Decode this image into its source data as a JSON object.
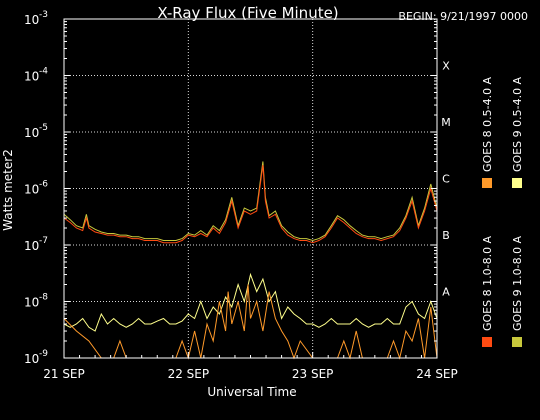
{
  "chart_data": {
    "type": "line",
    "title": "X-Ray Flux (Five Minute)",
    "begin_label": "BEGIN: 9/21/1997 0000",
    "xlabel": "Universal Time",
    "ylabel": "Watts meter2",
    "y_scale": "log",
    "ylim": [
      1e-09,
      0.001
    ],
    "xlim": [
      0,
      3
    ],
    "x_unit": "days from 21 SEP 1997 00:00 UT",
    "y_ticks": [
      {
        "base": "10",
        "exp": "-9",
        "value": 1e-09
      },
      {
        "base": "10",
        "exp": "-8",
        "value": 1e-08
      },
      {
        "base": "10",
        "exp": "-7",
        "value": 1e-07
      },
      {
        "base": "10",
        "exp": "-6",
        "value": 1e-06
      },
      {
        "base": "10",
        "exp": "-5",
        "value": 1e-05
      },
      {
        "base": "10",
        "exp": "-4",
        "value": 0.0001
      },
      {
        "base": "10",
        "exp": "-3",
        "value": 0.001
      }
    ],
    "x_ticks": [
      {
        "label": "21 SEP",
        "value": 0
      },
      {
        "label": "22 SEP",
        "value": 1
      },
      {
        "label": "23 SEP",
        "value": 2
      },
      {
        "label": "24 SEP",
        "value": 3
      }
    ],
    "flare_classes": [
      {
        "label": "A",
        "value": 1e-08
      },
      {
        "label": "B",
        "value": 1e-07
      },
      {
        "label": "C",
        "value": 1e-06
      },
      {
        "label": "M",
        "value": 1e-05
      },
      {
        "label": "X",
        "value": 0.0001
      }
    ],
    "grid": true,
    "legend_placement": "right",
    "series": [
      {
        "name": "GOES 8 1.0-8.0 A",
        "color": "#ff4b12",
        "x": [
          0,
          0.05,
          0.1,
          0.15,
          0.18,
          0.2,
          0.25,
          0.3,
          0.35,
          0.4,
          0.45,
          0.5,
          0.55,
          0.6,
          0.65,
          0.7,
          0.75,
          0.8,
          0.85,
          0.9,
          0.95,
          1.0,
          1.05,
          1.1,
          1.15,
          1.2,
          1.25,
          1.3,
          1.35,
          1.4,
          1.45,
          1.5,
          1.55,
          1.6,
          1.62,
          1.65,
          1.7,
          1.75,
          1.8,
          1.85,
          1.9,
          1.95,
          2.0,
          2.05,
          2.1,
          2.15,
          2.2,
          2.25,
          2.3,
          2.35,
          2.4,
          2.45,
          2.5,
          2.55,
          2.6,
          2.65,
          2.7,
          2.75,
          2.8,
          2.85,
          2.9,
          2.95,
          3.0
        ],
        "values": [
          3e-07,
          2.5e-07,
          2e-07,
          1.8e-07,
          3e-07,
          2e-07,
          1.7e-07,
          1.6e-07,
          1.5e-07,
          1.5e-07,
          1.4e-07,
          1.4e-07,
          1.3e-07,
          1.3e-07,
          1.2e-07,
          1.2e-07,
          1.2e-07,
          1.1e-07,
          1.1e-07,
          1.1e-07,
          1.2e-07,
          1.5e-07,
          1.4e-07,
          1.6e-07,
          1.4e-07,
          2e-07,
          1.6e-07,
          2.5e-07,
          6e-07,
          2e-07,
          4e-07,
          3.5e-07,
          4e-07,
          2.6e-06,
          6e-07,
          3e-07,
          3.5e-07,
          2e-07,
          1.5e-07,
          1.3e-07,
          1.2e-07,
          1.2e-07,
          1.1e-07,
          1.2e-07,
          1.4e-07,
          2e-07,
          3e-07,
          2.5e-07,
          2e-07,
          1.6e-07,
          1.4e-07,
          1.3e-07,
          1.3e-07,
          1.2e-07,
          1.3e-07,
          1.4e-07,
          1.8e-07,
          3e-07,
          6e-07,
          2e-07,
          4e-07,
          1e-06,
          4e-07
        ]
      },
      {
        "name": "GOES 8 0.5-4.0 A",
        "color": "#ff9a2a",
        "x": [
          0,
          0.1,
          0.2,
          0.3,
          0.4,
          0.45,
          0.5,
          0.55,
          0.6,
          0.7,
          0.8,
          0.9,
          0.95,
          1.0,
          1.05,
          1.1,
          1.15,
          1.2,
          1.25,
          1.3,
          1.32,
          1.35,
          1.4,
          1.45,
          1.48,
          1.5,
          1.55,
          1.6,
          1.65,
          1.7,
          1.75,
          1.8,
          1.85,
          1.9,
          2.0,
          2.1,
          2.2,
          2.25,
          2.3,
          2.35,
          2.4,
          2.5,
          2.6,
          2.65,
          2.7,
          2.75,
          2.8,
          2.85,
          2.9,
          2.95,
          3.0
        ],
        "values": [
          5e-09,
          3e-09,
          2e-09,
          1e-09,
          1e-09,
          2e-09,
          1e-09,
          1e-09,
          1e-09,
          1e-09,
          1e-09,
          1e-09,
          2e-09,
          1e-09,
          3e-09,
          1e-09,
          4e-09,
          2e-09,
          1e-08,
          3e-09,
          1.5e-08,
          4e-09,
          1e-08,
          3e-09,
          2e-08,
          5e-09,
          1e-08,
          3e-09,
          1.5e-08,
          5e-09,
          3e-09,
          2e-09,
          1e-09,
          2e-09,
          1e-09,
          1e-09,
          1e-09,
          2e-09,
          1e-09,
          3e-09,
          1e-09,
          1e-09,
          1e-09,
          2e-09,
          1e-09,
          3e-09,
          2e-09,
          5e-09,
          1e-09,
          8e-09,
          1e-09
        ]
      },
      {
        "name": "GOES 9 0.5-4.0 A",
        "color": "#ffff8c",
        "x": [
          0,
          0.05,
          0.1,
          0.15,
          0.2,
          0.25,
          0.3,
          0.35,
          0.4,
          0.45,
          0.5,
          0.55,
          0.6,
          0.65,
          0.7,
          0.75,
          0.8,
          0.85,
          0.9,
          0.95,
          1.0,
          1.05,
          1.1,
          1.15,
          1.2,
          1.25,
          1.3,
          1.35,
          1.4,
          1.45,
          1.5,
          1.55,
          1.6,
          1.65,
          1.7,
          1.75,
          1.8,
          1.85,
          1.9,
          1.95,
          2.0,
          2.05,
          2.1,
          2.15,
          2.2,
          2.25,
          2.3,
          2.35,
          2.4,
          2.45,
          2.5,
          2.55,
          2.6,
          2.65,
          2.7,
          2.75,
          2.8,
          2.85,
          2.9,
          2.95,
          3.0
        ],
        "values": [
          4e-09,
          3.5e-09,
          4e-09,
          5e-09,
          3.5e-09,
          3e-09,
          6e-09,
          4e-09,
          5e-09,
          4e-09,
          3.5e-09,
          4e-09,
          5e-09,
          4e-09,
          4e-09,
          4.5e-09,
          5e-09,
          4e-09,
          4e-09,
          4.5e-09,
          6e-09,
          5e-09,
          1e-08,
          5e-09,
          8e-09,
          6e-09,
          1.2e-08,
          8e-09,
          2e-08,
          1e-08,
          3e-08,
          1.5e-08,
          2.5e-08,
          1e-08,
          1.5e-08,
          5e-09,
          8e-09,
          6e-09,
          5e-09,
          4e-09,
          4e-09,
          3.5e-09,
          4e-09,
          5e-09,
          4e-09,
          4e-09,
          4e-09,
          5e-09,
          4e-09,
          3.5e-09,
          4e-09,
          4e-09,
          5e-09,
          4e-09,
          4e-09,
          8e-09,
          1e-08,
          6e-09,
          5e-09,
          1e-08,
          5e-09
        ]
      },
      {
        "name": "GOES 9 1.0-8.0 A",
        "color": "#c8c83c",
        "x": [
          0,
          0.05,
          0.1,
          0.15,
          0.18,
          0.2,
          0.25,
          0.3,
          0.35,
          0.4,
          0.45,
          0.5,
          0.55,
          0.6,
          0.65,
          0.7,
          0.75,
          0.8,
          0.85,
          0.9,
          0.95,
          1.0,
          1.05,
          1.1,
          1.15,
          1.2,
          1.25,
          1.3,
          1.35,
          1.4,
          1.45,
          1.5,
          1.55,
          1.6,
          1.62,
          1.65,
          1.7,
          1.75,
          1.8,
          1.85,
          1.9,
          1.95,
          2.0,
          2.05,
          2.1,
          2.15,
          2.2,
          2.25,
          2.3,
          2.35,
          2.4,
          2.45,
          2.5,
          2.55,
          2.6,
          2.65,
          2.7,
          2.75,
          2.8,
          2.85,
          2.9,
          2.95,
          3.0
        ],
        "values": [
          3.5e-07,
          2.8e-07,
          2.2e-07,
          2e-07,
          3.5e-07,
          2.2e-07,
          1.9e-07,
          1.7e-07,
          1.6e-07,
          1.6e-07,
          1.5e-07,
          1.5e-07,
          1.4e-07,
          1.4e-07,
          1.3e-07,
          1.3e-07,
          1.3e-07,
          1.2e-07,
          1.2e-07,
          1.2e-07,
          1.3e-07,
          1.6e-07,
          1.5e-07,
          1.8e-07,
          1.5e-07,
          2.2e-07,
          1.8e-07,
          2.8e-07,
          7e-07,
          2.2e-07,
          4.5e-07,
          4e-07,
          4.5e-07,
          3e-06,
          7e-07,
          3.3e-07,
          4e-07,
          2.2e-07,
          1.7e-07,
          1.4e-07,
          1.3e-07,
          1.3e-07,
          1.2e-07,
          1.3e-07,
          1.5e-07,
          2.2e-07,
          3.3e-07,
          2.8e-07,
          2.2e-07,
          1.8e-07,
          1.5e-07,
          1.4e-07,
          1.4e-07,
          1.3e-07,
          1.4e-07,
          1.5e-07,
          2e-07,
          3.3e-07,
          7e-07,
          2.2e-07,
          4.5e-07,
          1.2e-06,
          4.5e-07
        ]
      }
    ]
  }
}
